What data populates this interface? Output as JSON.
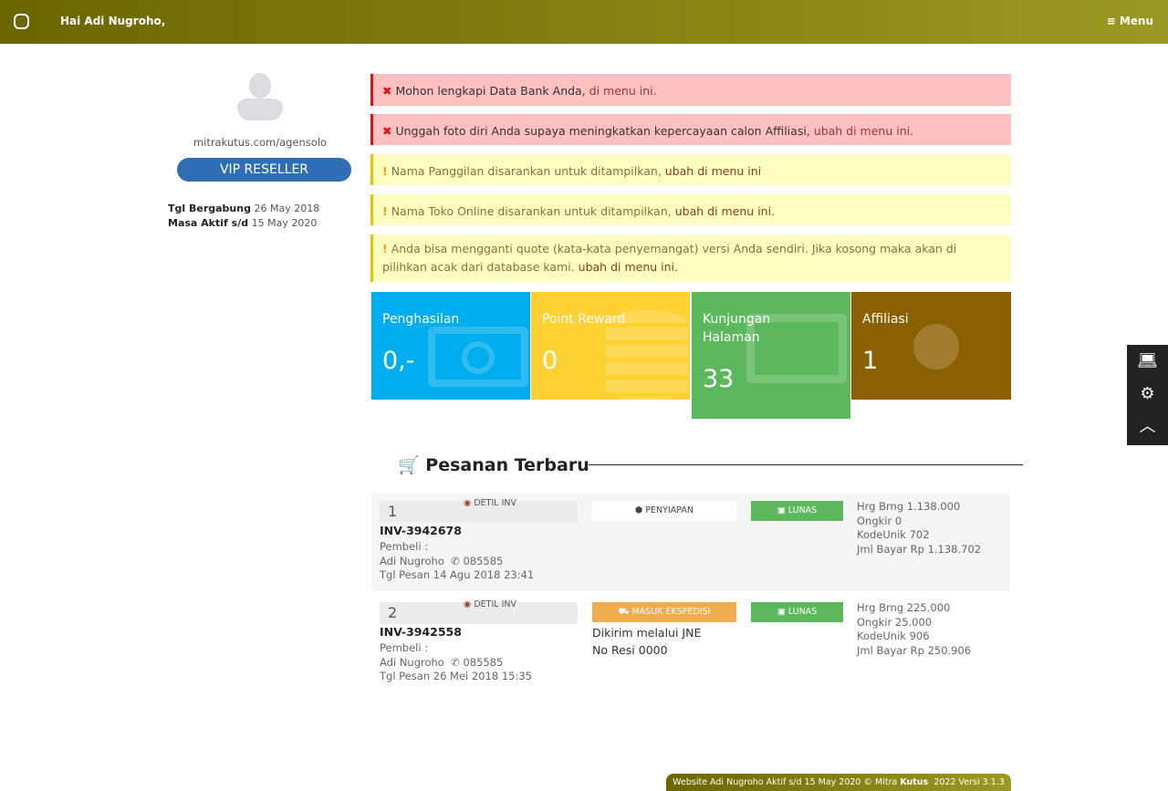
{
  "header": {
    "greeting": "Hai Adi Nugroho,",
    "menu_label": "Menu",
    "menu_icon": "hamburger-icon",
    "logo_icon": "clover-icon"
  },
  "profile": {
    "url": "mitrakutus.com/agensolo",
    "level": "VIP RESELLER",
    "join_label": "Tgl Bergabung",
    "join_date": "26 May 2018",
    "active_label": "Masa Aktif s/d",
    "active_date": "15 May 2020"
  },
  "alerts": [
    {
      "type": "error",
      "text": "Mohon lengkapi Data Bank Anda,",
      "link": "di menu ini."
    },
    {
      "type": "error",
      "text": "Unggah foto diri Anda supaya meningkatkan kepercayaan calon Affiliasi,",
      "link": "ubah di menu ini."
    },
    {
      "type": "warning",
      "text": "Nama Panggilan disarankan untuk ditampilkan,",
      "link": "ubah di menu ini"
    },
    {
      "type": "warning",
      "text": "Nama Toko Online disarankan untuk ditampilkan,",
      "link": "ubah di menu ini."
    },
    {
      "type": "warning",
      "text": "Anda bisa mengganti quote (kata-kata penyemangat) versi Anda sendiri. Jika kosong maka akan di pilihkan acak dari database kami.",
      "link": "ubah di menu ini."
    }
  ],
  "stats": [
    {
      "label": "Penghasilan",
      "value": "0,-",
      "color": "#00aeef",
      "icon": "money-icon"
    },
    {
      "label": "Point Reward",
      "value": "0",
      "color": "#ffd133",
      "icon": "coins-icon"
    },
    {
      "label": "Kunjungan Halaman",
      "value": "33",
      "color": "#5cb85c",
      "icon": "monitor-icon"
    },
    {
      "label": "Affiliasi",
      "value": "1",
      "color": "#8a6000",
      "icon": "users-icon"
    }
  ],
  "orders_title": "Pesanan Terbaru",
  "orders": [
    {
      "no": "1",
      "detail": "DETIL INV",
      "invoice": "INV-3942678",
      "buyer_label": "Pembeli :",
      "buyer": "Adi Nugroho",
      "phone": "085585",
      "date": "Tgl Pesan 14 Agu 2018 23:41",
      "status": "PENYIAPAN",
      "payment": "LUNAS",
      "price": "Hrg Brng 1.138.000",
      "shipping": "Ongkir 0",
      "code": "KodeUnik 702",
      "total": "Jml Bayar Rp 1.138.702"
    },
    {
      "no": "2",
      "detail": "DETIL INV",
      "invoice": "INV-3942558",
      "buyer_label": "Pembeli :",
      "buyer": "Adi Nugroho",
      "phone": "085585",
      "date": "Tgl Pesan 26 Mei 2018 15:35",
      "status": "MASUK EKSPEDISI",
      "courier": "Dikirim melalui JNE",
      "resi": "No Resi 0000",
      "payment": "LUNAS",
      "price": "Hrg Brng 225.000",
      "shipping": "Ongkir 25.000",
      "code": "KodeUnik 906",
      "total": "Jml Bayar Rp 250.906"
    }
  ],
  "footer": {
    "text": "Website Adi Nugroho Aktif s/d 15 May 2020 © Mitra",
    "brand": "Kutus",
    "version": "2022 Versi 3.1.3"
  }
}
